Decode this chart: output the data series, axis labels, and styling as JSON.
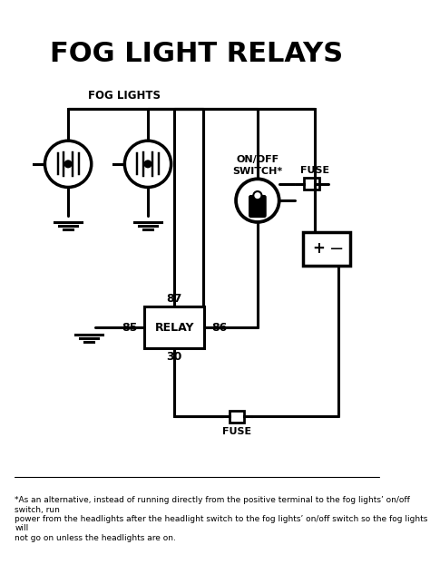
{
  "title": "FOG LIGHT RELAYS",
  "title_fontsize": 22,
  "title_fontweight": "bold",
  "bg_color": "#ffffff",
  "line_color": "#000000",
  "line_width": 2.2,
  "footnote": "*As an alternative, instead of running directly from the positive terminal to the fog lights’ on/off switch, run\npower from the headlights after the headlight switch to the fog lights’ on/off switch so the fog lights will\nnot go on unless the headlights are on.",
  "footnote_fontsize": 6.5,
  "label_fog_lights": "FOG LIGHTS",
  "label_switch": "ON/OFF\nSWITCH*",
  "label_fuse_top": "FUSE",
  "label_fuse_bot": "FUSE",
  "label_relay": "RELAY",
  "label_85": "85",
  "label_86": "86",
  "label_87": "87",
  "label_30": "30"
}
